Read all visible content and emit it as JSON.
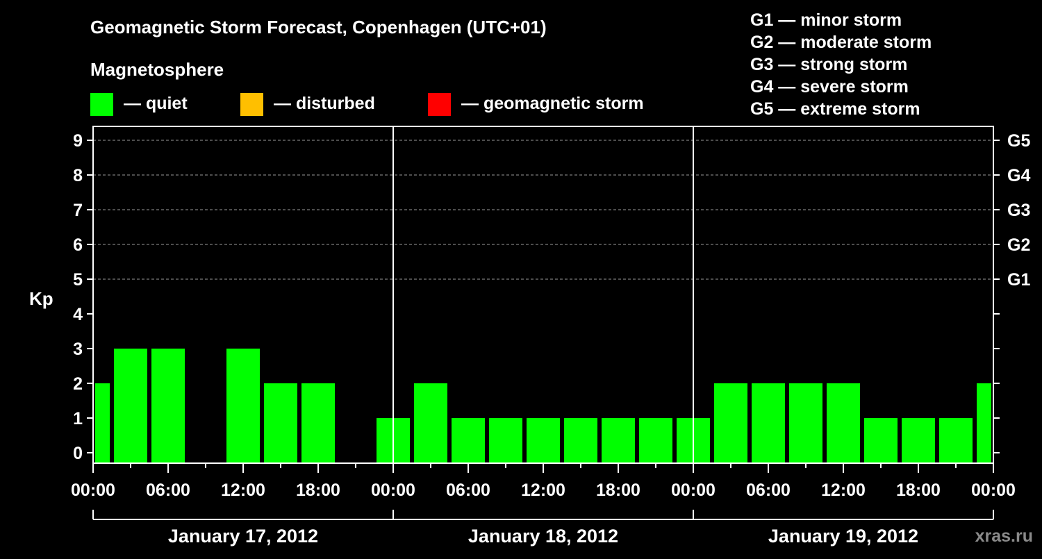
{
  "chart_data": {
    "type": "bar",
    "title": "Geomagnetic Storm Forecast, Copenhagen (UTC+01)",
    "ylabel": "Kp",
    "ylim": [
      0,
      9
    ],
    "grid": true,
    "legend_title": "Magnetosphere",
    "legend": [
      {
        "label": "— quiet",
        "color": "#00ff00"
      },
      {
        "label": "— disturbed",
        "color": "#ffbf00"
      },
      {
        "label": "— geomagnetic storm",
        "color": "#ff0000"
      }
    ],
    "storm_levels": [
      {
        "label": "G1 — minor storm",
        "short": "G1",
        "kp": 5
      },
      {
        "label": "G2 — moderate storm",
        "short": "G2",
        "kp": 6
      },
      {
        "label": "G3 — strong storm",
        "short": "G3",
        "kp": 7
      },
      {
        "label": "G4 — severe storm",
        "short": "G4",
        "kp": 8
      },
      {
        "label": "G5 — extreme storm",
        "short": "G5",
        "kp": 9
      }
    ],
    "yticks": [
      0,
      1,
      2,
      3,
      4,
      5,
      6,
      7,
      8,
      9
    ],
    "xticks": [
      "00:00",
      "06:00",
      "12:00",
      "18:00",
      "00:00",
      "06:00",
      "12:00",
      "18:00",
      "00:00",
      "06:00",
      "12:00",
      "18:00",
      "00:00"
    ],
    "days": [
      "January 17, 2012",
      "January 18, 2012",
      "January 19, 2012"
    ],
    "bar_color": "#00ff00",
    "bar_start_hours": [
      0,
      1.5,
      4.5,
      7.5,
      10.5,
      13.5,
      16.5,
      19.5,
      22.5,
      25.5,
      28.5,
      31.5,
      34.5,
      37.5,
      40.5,
      43.5,
      46.5,
      49.5,
      52.5,
      55.5,
      58.5,
      61.5,
      64.5,
      67.5,
      70.5
    ],
    "bar_end_hours": [
      1.5,
      4.5,
      7.5,
      10.5,
      13.5,
      16.5,
      19.5,
      22.5,
      25.5,
      28.5,
      31.5,
      34.5,
      37.5,
      40.5,
      43.5,
      46.5,
      49.5,
      52.5,
      55.5,
      58.5,
      61.5,
      64.5,
      67.5,
      70.5,
      72
    ],
    "values": [
      2,
      3,
      3,
      0,
      3,
      2,
      2,
      0,
      1,
      2,
      1,
      1,
      1,
      1,
      1,
      1,
      1,
      2,
      2,
      2,
      2,
      1,
      1,
      1,
      2
    ]
  },
  "credit": "xras.ru"
}
